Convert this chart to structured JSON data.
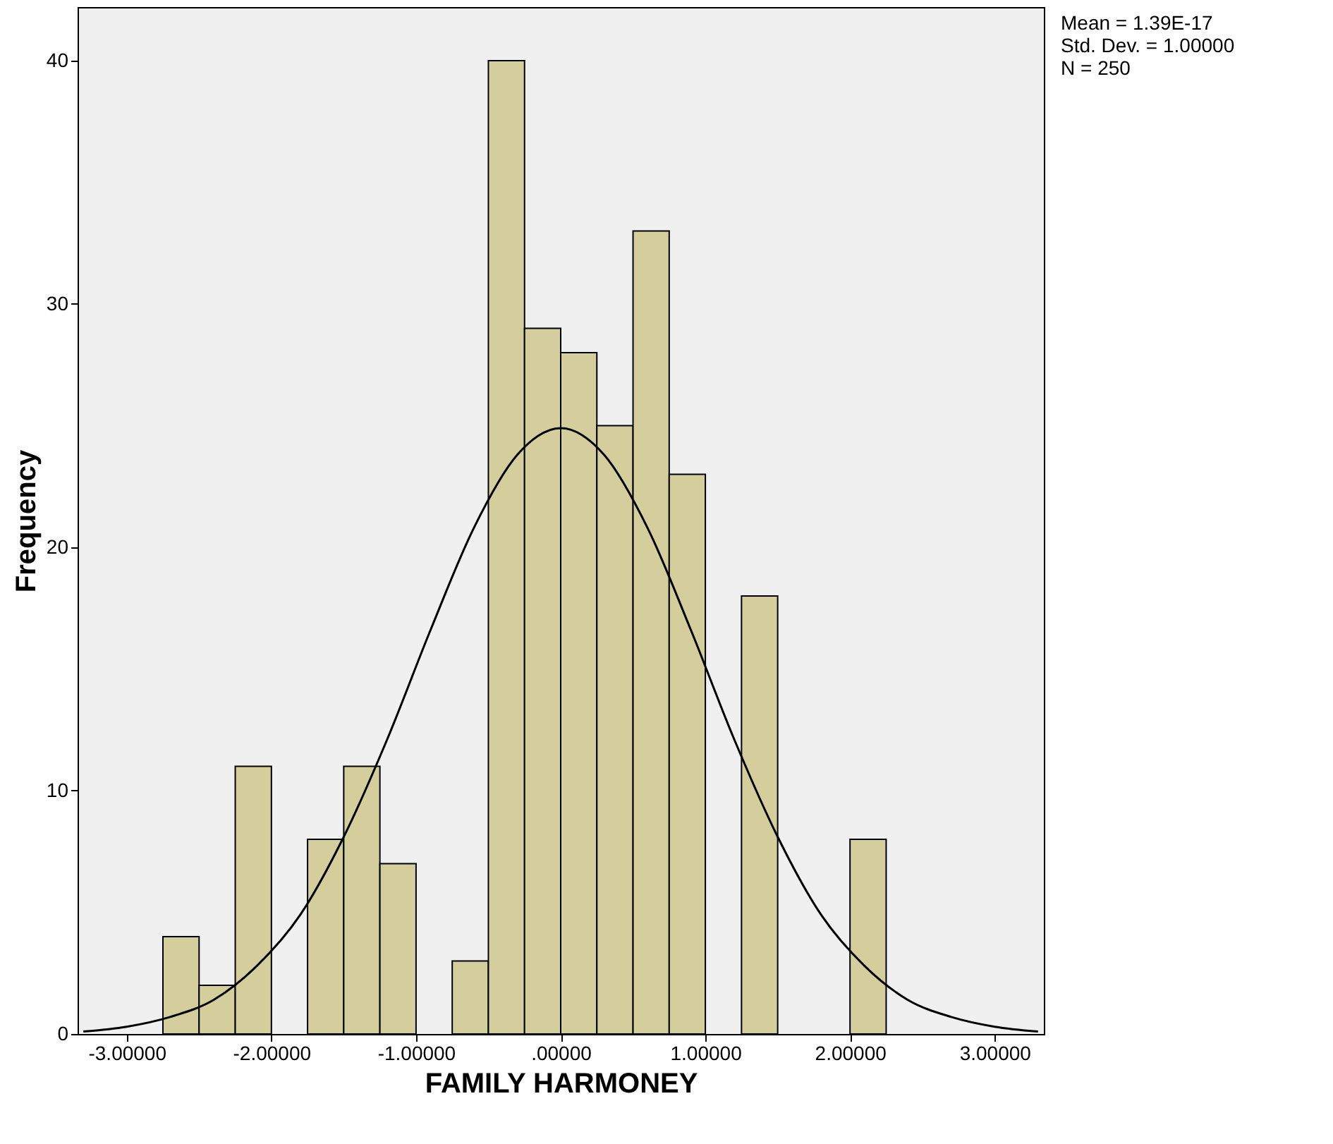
{
  "chart_data": {
    "type": "histogram",
    "xlabel": "FAMILY HARMONEY",
    "ylabel": "Frequency",
    "bins": [
      -2.75,
      -2.5,
      -2.25,
      -2.0,
      -1.75,
      -1.5,
      -1.25,
      -1.0,
      -0.75,
      -0.5,
      -0.25,
      0,
      0.25,
      0.5,
      0.75,
      1.0,
      1.25,
      1.5,
      1.75,
      2.0,
      2.25
    ],
    "values": [
      4,
      2,
      11,
      0,
      8,
      11,
      7,
      0,
      3,
      40,
      29,
      28,
      25,
      33,
      23,
      0,
      18,
      0,
      0,
      8
    ],
    "color": "#d3ce9b",
    "series": [
      {
        "type": "line",
        "color": "#000000",
        "x": [
          -3.3,
          -3.0,
          -2.7,
          -2.4,
          -2.1,
          -1.8,
          -1.5,
          -1.2,
          -0.9,
          -0.6,
          -0.3,
          0,
          0.3,
          0.6,
          0.9,
          1.2,
          1.5,
          1.8,
          2.1,
          2.4,
          2.7,
          3.0,
          3.3
        ],
        "values": [
          0.1,
          0.3,
          0.7,
          1.4,
          2.8,
          4.9,
          8.1,
          12.1,
          16.6,
          20.8,
          23.8,
          24.9,
          23.8,
          20.8,
          16.6,
          12.1,
          8.1,
          4.9,
          2.8,
          1.4,
          0.7,
          0.3,
          0.1
        ]
      }
    ],
    "xlim": [
      -3.34,
      3.34
    ],
    "xticks": [
      {
        "value": -3,
        "label": "-3.00000"
      },
      {
        "value": -2,
        "label": "-2.00000"
      },
      {
        "value": -1,
        "label": "-1.00000"
      },
      {
        "value": 0,
        "label": ".00000"
      },
      {
        "value": 1,
        "label": "1.00000"
      },
      {
        "value": 2,
        "label": "2.00000"
      },
      {
        "value": 3,
        "label": "3.00000"
      }
    ],
    "ylim": [
      0,
      42.2
    ],
    "yticks": [
      0,
      10,
      20,
      30,
      40
    ],
    "grid": false,
    "annotations": [
      "Mean = 1.39E-17",
      "Std. Dev. = 1.00000",
      "N = 250"
    ]
  }
}
